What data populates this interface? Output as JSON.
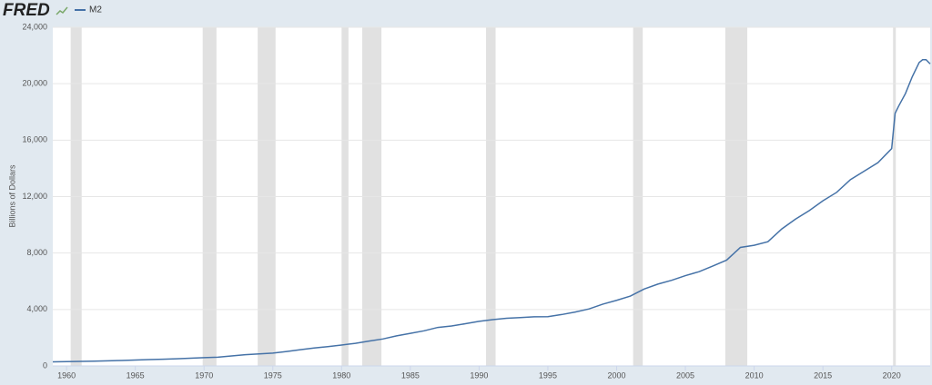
{
  "logo": "FRED",
  "chart_data": {
    "type": "line",
    "ylabel": "Billions of Dollars",
    "x": [
      1959,
      1960,
      1961,
      1962,
      1963,
      1964,
      1965,
      1966,
      1967,
      1968,
      1969,
      1970,
      1971,
      1972,
      1973,
      1974,
      1975,
      1976,
      1977,
      1978,
      1979,
      1980,
      1981,
      1982,
      1983,
      1984,
      1985,
      1986,
      1987,
      1988,
      1989,
      1990,
      1991,
      1992,
      1993,
      1994,
      1995,
      1996,
      1997,
      1998,
      1999,
      2000,
      2001,
      2002,
      2003,
      2004,
      2005,
      2006,
      2007,
      2008,
      2009,
      2010,
      2011,
      2012,
      2013,
      2014,
      2015,
      2016,
      2017,
      2018,
      2019,
      2020,
      2020.25,
      2020.5,
      2021,
      2021.5,
      2022,
      2022.25,
      2022.5,
      2022.8
    ],
    "series": [
      {
        "name": "M2",
        "color": "#4572a7",
        "values": [
          290,
          305,
          320,
          340,
          365,
          390,
          420,
          450,
          475,
          510,
          550,
          590,
          620,
          710,
          800,
          855,
          910,
          1020,
          1150,
          1270,
          1370,
          1480,
          1600,
          1760,
          1910,
          2130,
          2310,
          2490,
          2730,
          2830,
          2990,
          3160,
          3280,
          3380,
          3430,
          3480,
          3490,
          3640,
          3820,
          4040,
          4380,
          4650,
          4950,
          5450,
          5800,
          6070,
          6400,
          6680,
          7080,
          7500,
          8400,
          8550,
          8800,
          9700,
          10400,
          11000,
          11700,
          12300,
          13200,
          13800,
          14400,
          15400,
          17900,
          18400,
          19300,
          20500,
          21500,
          21700,
          21700,
          21400
        ]
      }
    ],
    "shading": [
      [
        1960.3,
        1961.1
      ],
      [
        1969.9,
        1970.9
      ],
      [
        1973.9,
        1975.2
      ],
      [
        1980.0,
        1980.5
      ],
      [
        1981.5,
        1982.9
      ],
      [
        1990.5,
        1991.2
      ],
      [
        2001.2,
        2001.9
      ],
      [
        2007.9,
        2009.5
      ],
      [
        2020.1,
        2020.3
      ]
    ],
    "shading_color": "#e1e1e1",
    "xlim": [
      1959,
      2022.8
    ],
    "xticks": [
      1960,
      1965,
      1970,
      1975,
      1980,
      1985,
      1990,
      1995,
      2000,
      2005,
      2010,
      2015,
      2020
    ],
    "ylim": [
      0,
      24000
    ],
    "yticks": [
      0,
      {
        "value": 4000,
        "label": "4,000"
      },
      {
        "value": 8000,
        "label": "8,000"
      },
      {
        "value": 12000,
        "label": "12,000"
      },
      {
        "value": 16000,
        "label": "16,000"
      },
      {
        "value": 20000,
        "label": "20,000"
      },
      {
        "value": 24000,
        "label": "24,000"
      }
    ],
    "grid": true
  }
}
